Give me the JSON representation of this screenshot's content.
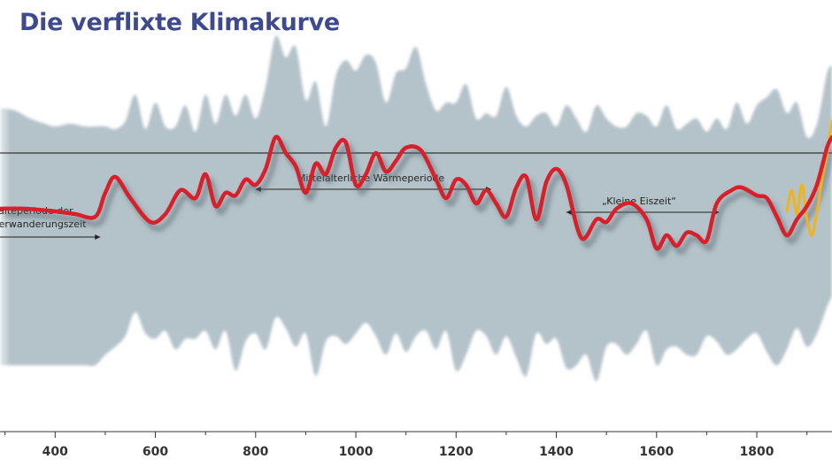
{
  "title": "Die verflixte Klimakurve",
  "chart_data": {
    "type": "line",
    "title": "Die verflixte Klimakurve",
    "xlabel": "",
    "ylabel": "",
    "xlim": [
      290,
      1950
    ],
    "x_ticks": [
      400,
      600,
      800,
      1000,
      1200,
      1400,
      1600,
      1800
    ],
    "x_tick_labels": [
      "400",
      "600",
      "800",
      "1000",
      "1200",
      "1400",
      "1600",
      "1800"
    ],
    "y_value_semantics": "relative temperature level, reference line = 0, upward = warmer",
    "ylim": [
      -5.0,
      3.5
    ],
    "reference_line": 0,
    "grid": false,
    "legend": "none",
    "series": [
      {
        "color": "#d8202a",
        "x": [
          290,
          340,
          400,
          440,
          480,
          500,
          520,
          550,
          590,
          620,
          650,
          680,
          700,
          720,
          740,
          760,
          780,
          800,
          820,
          840,
          860,
          880,
          900,
          920,
          940,
          960,
          980,
          1000,
          1020,
          1040,
          1060,
          1080,
          1100,
          1130,
          1160,
          1180,
          1200,
          1220,
          1240,
          1260,
          1280,
          1300,
          1320,
          1340,
          1360,
          1380,
          1400,
          1420,
          1450,
          1480,
          1500,
          1520,
          1550,
          1580,
          1600,
          1620,
          1640,
          1660,
          1680,
          1700,
          1720,
          1750,
          1770,
          1800,
          1820,
          1840,
          1860,
          1880,
          1900,
          1920,
          1940,
          1950
        ],
        "values": [
          -2.1,
          -2.1,
          -2.2,
          -2.3,
          -2.4,
          -1.5,
          -0.9,
          -1.7,
          -2.6,
          -2.3,
          -1.4,
          -1.7,
          -0.8,
          -2.0,
          -1.5,
          -1.6,
          -1.0,
          -1.2,
          -0.6,
          0.6,
          0.0,
          -0.5,
          -1.5,
          -0.4,
          -0.8,
          0.2,
          0.4,
          -1.2,
          -0.8,
          0.0,
          -0.7,
          -0.3,
          0.2,
          0.1,
          -1.0,
          -1.7,
          -1.0,
          -1.2,
          -1.9,
          -1.4,
          -1.9,
          -2.4,
          -1.3,
          -0.9,
          -2.5,
          -1.1,
          -0.6,
          -1.2,
          -3.2,
          -2.5,
          -2.6,
          -2.1,
          -1.9,
          -2.5,
          -3.6,
          -3.1,
          -3.5,
          -3.0,
          -3.1,
          -3.3,
          -1.9,
          -1.4,
          -1.3,
          -1.6,
          -1.7,
          -2.4,
          -3.1,
          -2.5,
          -2.0,
          -1.2,
          0.2,
          0.6
        ]
      },
      {
        "color": "#f2b21b",
        "x": [
          1860,
          1870,
          1880,
          1890,
          1900,
          1910,
          1920,
          1930,
          1940,
          1950
        ],
        "values": [
          -2.2,
          -1.4,
          -2.3,
          -1.2,
          -2.5,
          -3.1,
          -2.2,
          -1.0,
          0.0,
          1.2
        ]
      }
    ],
    "uncertainty_band": {
      "color": "#b4c2c9",
      "x": [
        290,
        320,
        350,
        380,
        400,
        430,
        460,
        480,
        500,
        520,
        540,
        560,
        580,
        600,
        620,
        640,
        660,
        680,
        700,
        720,
        740,
        760,
        780,
        800,
        820,
        840,
        860,
        880,
        900,
        920,
        940,
        960,
        980,
        1000,
        1020,
        1040,
        1060,
        1080,
        1100,
        1120,
        1140,
        1160,
        1180,
        1200,
        1220,
        1240,
        1260,
        1280,
        1300,
        1320,
        1340,
        1360,
        1380,
        1400,
        1420,
        1440,
        1460,
        1480,
        1500,
        1520,
        1540,
        1560,
        1580,
        1600,
        1620,
        1640,
        1660,
        1680,
        1700,
        1720,
        1740,
        1760,
        1780,
        1800,
        1820,
        1840,
        1860,
        1880,
        1900,
        1920,
        1940,
        1950
      ],
      "upper": [
        1.7,
        1.6,
        1.3,
        1.1,
        1.0,
        1.1,
        1.0,
        1.0,
        1.0,
        0.9,
        1.2,
        2.2,
        0.9,
        1.9,
        1.0,
        1.0,
        1.8,
        0.8,
        2.2,
        1.1,
        2.2,
        1.4,
        2.2,
        1.3,
        2.5,
        4.4,
        3.6,
        4.0,
        2.0,
        2.7,
        1.0,
        2.9,
        3.5,
        3.1,
        3.7,
        3.4,
        1.9,
        3.0,
        3.2,
        4.0,
        2.6,
        1.6,
        1.9,
        1.9,
        2.6,
        1.3,
        1.5,
        1.4,
        2.5,
        1.4,
        1.0,
        1.4,
        1.5,
        1.0,
        1.8,
        1.3,
        0.8,
        1.8,
        1.3,
        1.0,
        1.0,
        1.5,
        1.4,
        1.0,
        1.8,
        0.9,
        1.1,
        1.3,
        0.8,
        1.3,
        0.9,
        1.9,
        1.1,
        1.8,
        2.1,
        2.4,
        1.5,
        1.9,
        0.6,
        1.1,
        3.0,
        3.3
      ],
      "lower": [
        -8.0,
        -8.0,
        -8.0,
        -8.0,
        -8.0,
        -8.0,
        -8.0,
        -8.0,
        -7.6,
        -7.3,
        -6.9,
        -6.0,
        -6.8,
        -7.0,
        -6.7,
        -7.4,
        -7.0,
        -7.0,
        -6.7,
        -7.4,
        -6.7,
        -8.2,
        -7.1,
        -6.8,
        -7.4,
        -6.2,
        -6.6,
        -7.3,
        -6.8,
        -8.4,
        -7.1,
        -6.9,
        -7.2,
        -6.8,
        -6.4,
        -6.9,
        -7.6,
        -6.8,
        -7.5,
        -6.9,
        -6.7,
        -7.4,
        -6.7,
        -8.2,
        -7.6,
        -6.7,
        -6.9,
        -7.6,
        -6.9,
        -7.7,
        -8.4,
        -6.8,
        -7.2,
        -7.0,
        -8.1,
        -8.0,
        -7.6,
        -8.6,
        -7.3,
        -7.2,
        -7.6,
        -7.2,
        -6.7,
        -8.0,
        -7.4,
        -7.3,
        -7.6,
        -7.6,
        -6.9,
        -7.1,
        -7.6,
        -7.4,
        -7.0,
        -6.8,
        -7.5,
        -8.0,
        -7.4,
        -6.6,
        -7.3,
        -6.8,
        -5.8,
        -5.4
      ]
    },
    "annotations": [
      {
        "text": "Kälteperiode der",
        "x": 355
      },
      {
        "text": "Völkerwanderungszeit",
        "x": 355
      },
      {
        "text": "Mittelalterliche Wärmeperiode",
        "x": 1030,
        "from": 800,
        "to": 1270
      },
      {
        "text": "„Kleine Eiszeit“",
        "x": 1565,
        "from": 1420,
        "to": 1725
      }
    ]
  }
}
